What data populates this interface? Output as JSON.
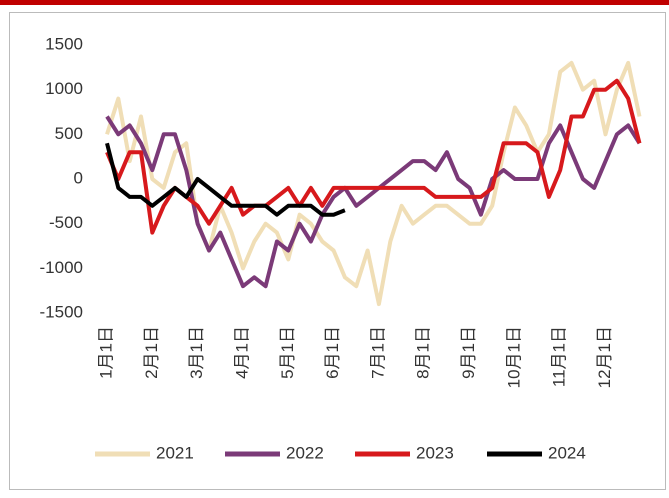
{
  "chart_data": {
    "type": "line",
    "categories": [
      "1月1日",
      null,
      null,
      null,
      "2月1日",
      null,
      null,
      null,
      "3月1日",
      null,
      null,
      null,
      "4月1日",
      null,
      null,
      null,
      "5月1日",
      null,
      null,
      null,
      "6月1日",
      null,
      null,
      null,
      "7月1日",
      null,
      null,
      null,
      "8月1日",
      null,
      null,
      null,
      "9月1日",
      null,
      null,
      null,
      "10月1日",
      null,
      null,
      null,
      "11月1日",
      null,
      null,
      null,
      "12月1日",
      null,
      null,
      null
    ],
    "series": [
      {
        "name": "2021",
        "color": "#f0deb6",
        "values": [
          500,
          900,
          200,
          700,
          0,
          -100,
          300,
          400,
          -500,
          -800,
          -300,
          -600,
          -1000,
          -700,
          -500,
          -600,
          -900,
          -400,
          -500,
          -700,
          -800,
          -1100,
          -1200,
          -800,
          -1400,
          -700,
          -300,
          -500,
          -400,
          -300,
          -300,
          -400,
          -500,
          -500,
          -300,
          300,
          800,
          600,
          300,
          500,
          1200,
          1300,
          1000,
          1100,
          500,
          1000,
          1300,
          700
        ]
      },
      {
        "name": "2022",
        "color": "#7b3a78",
        "values": [
          700,
          500,
          600,
          400,
          100,
          500,
          500,
          100,
          -500,
          -800,
          -600,
          -900,
          -1200,
          -1100,
          -1200,
          -700,
          -800,
          -500,
          -700,
          -400,
          -200,
          -100,
          -300,
          -200,
          -100,
          0,
          100,
          200,
          200,
          100,
          300,
          0,
          -100,
          -400,
          0,
          100,
          0,
          0,
          0,
          400,
          600,
          300,
          0,
          -100,
          200,
          500,
          600,
          400
        ]
      },
      {
        "name": "2023",
        "color": "#d7191c",
        "values": [
          300,
          0,
          300,
          300,
          -600,
          -300,
          -100,
          -200,
          -300,
          -500,
          -300,
          -100,
          -400,
          -300,
          -300,
          -200,
          -100,
          -300,
          -100,
          -300,
          -100,
          -100,
          -100,
          -100,
          -100,
          -100,
          -100,
          -100,
          -100,
          -200,
          -200,
          -200,
          -200,
          -200,
          -100,
          400,
          400,
          400,
          300,
          -200,
          100,
          700,
          700,
          1000,
          1000,
          1100,
          900,
          400
        ]
      },
      {
        "name": "2024",
        "color": "#000000",
        "values": [
          400,
          -100,
          -200,
          -200,
          -300,
          -200,
          -100,
          -200,
          0,
          -100,
          -200,
          -300,
          -300,
          -300,
          -300,
          -400,
          -300,
          -300,
          -300,
          -400,
          -400,
          -350,
          null,
          null,
          null,
          null,
          null,
          null,
          null,
          null,
          null,
          null,
          null,
          null,
          null,
          null,
          null,
          null,
          null,
          null,
          null,
          null,
          null,
          null,
          null,
          null,
          null,
          null
        ]
      }
    ],
    "ylim": [
      -1500,
      1500
    ],
    "yticks": [
      {
        "value": -1500,
        "label": "-1500"
      },
      {
        "value": -1000,
        "label": "-1000"
      },
      {
        "value": -500,
        "label": "-500"
      },
      0,
      500,
      1000,
      1500
    ],
    "grid": false,
    "legend": "bottom"
  }
}
